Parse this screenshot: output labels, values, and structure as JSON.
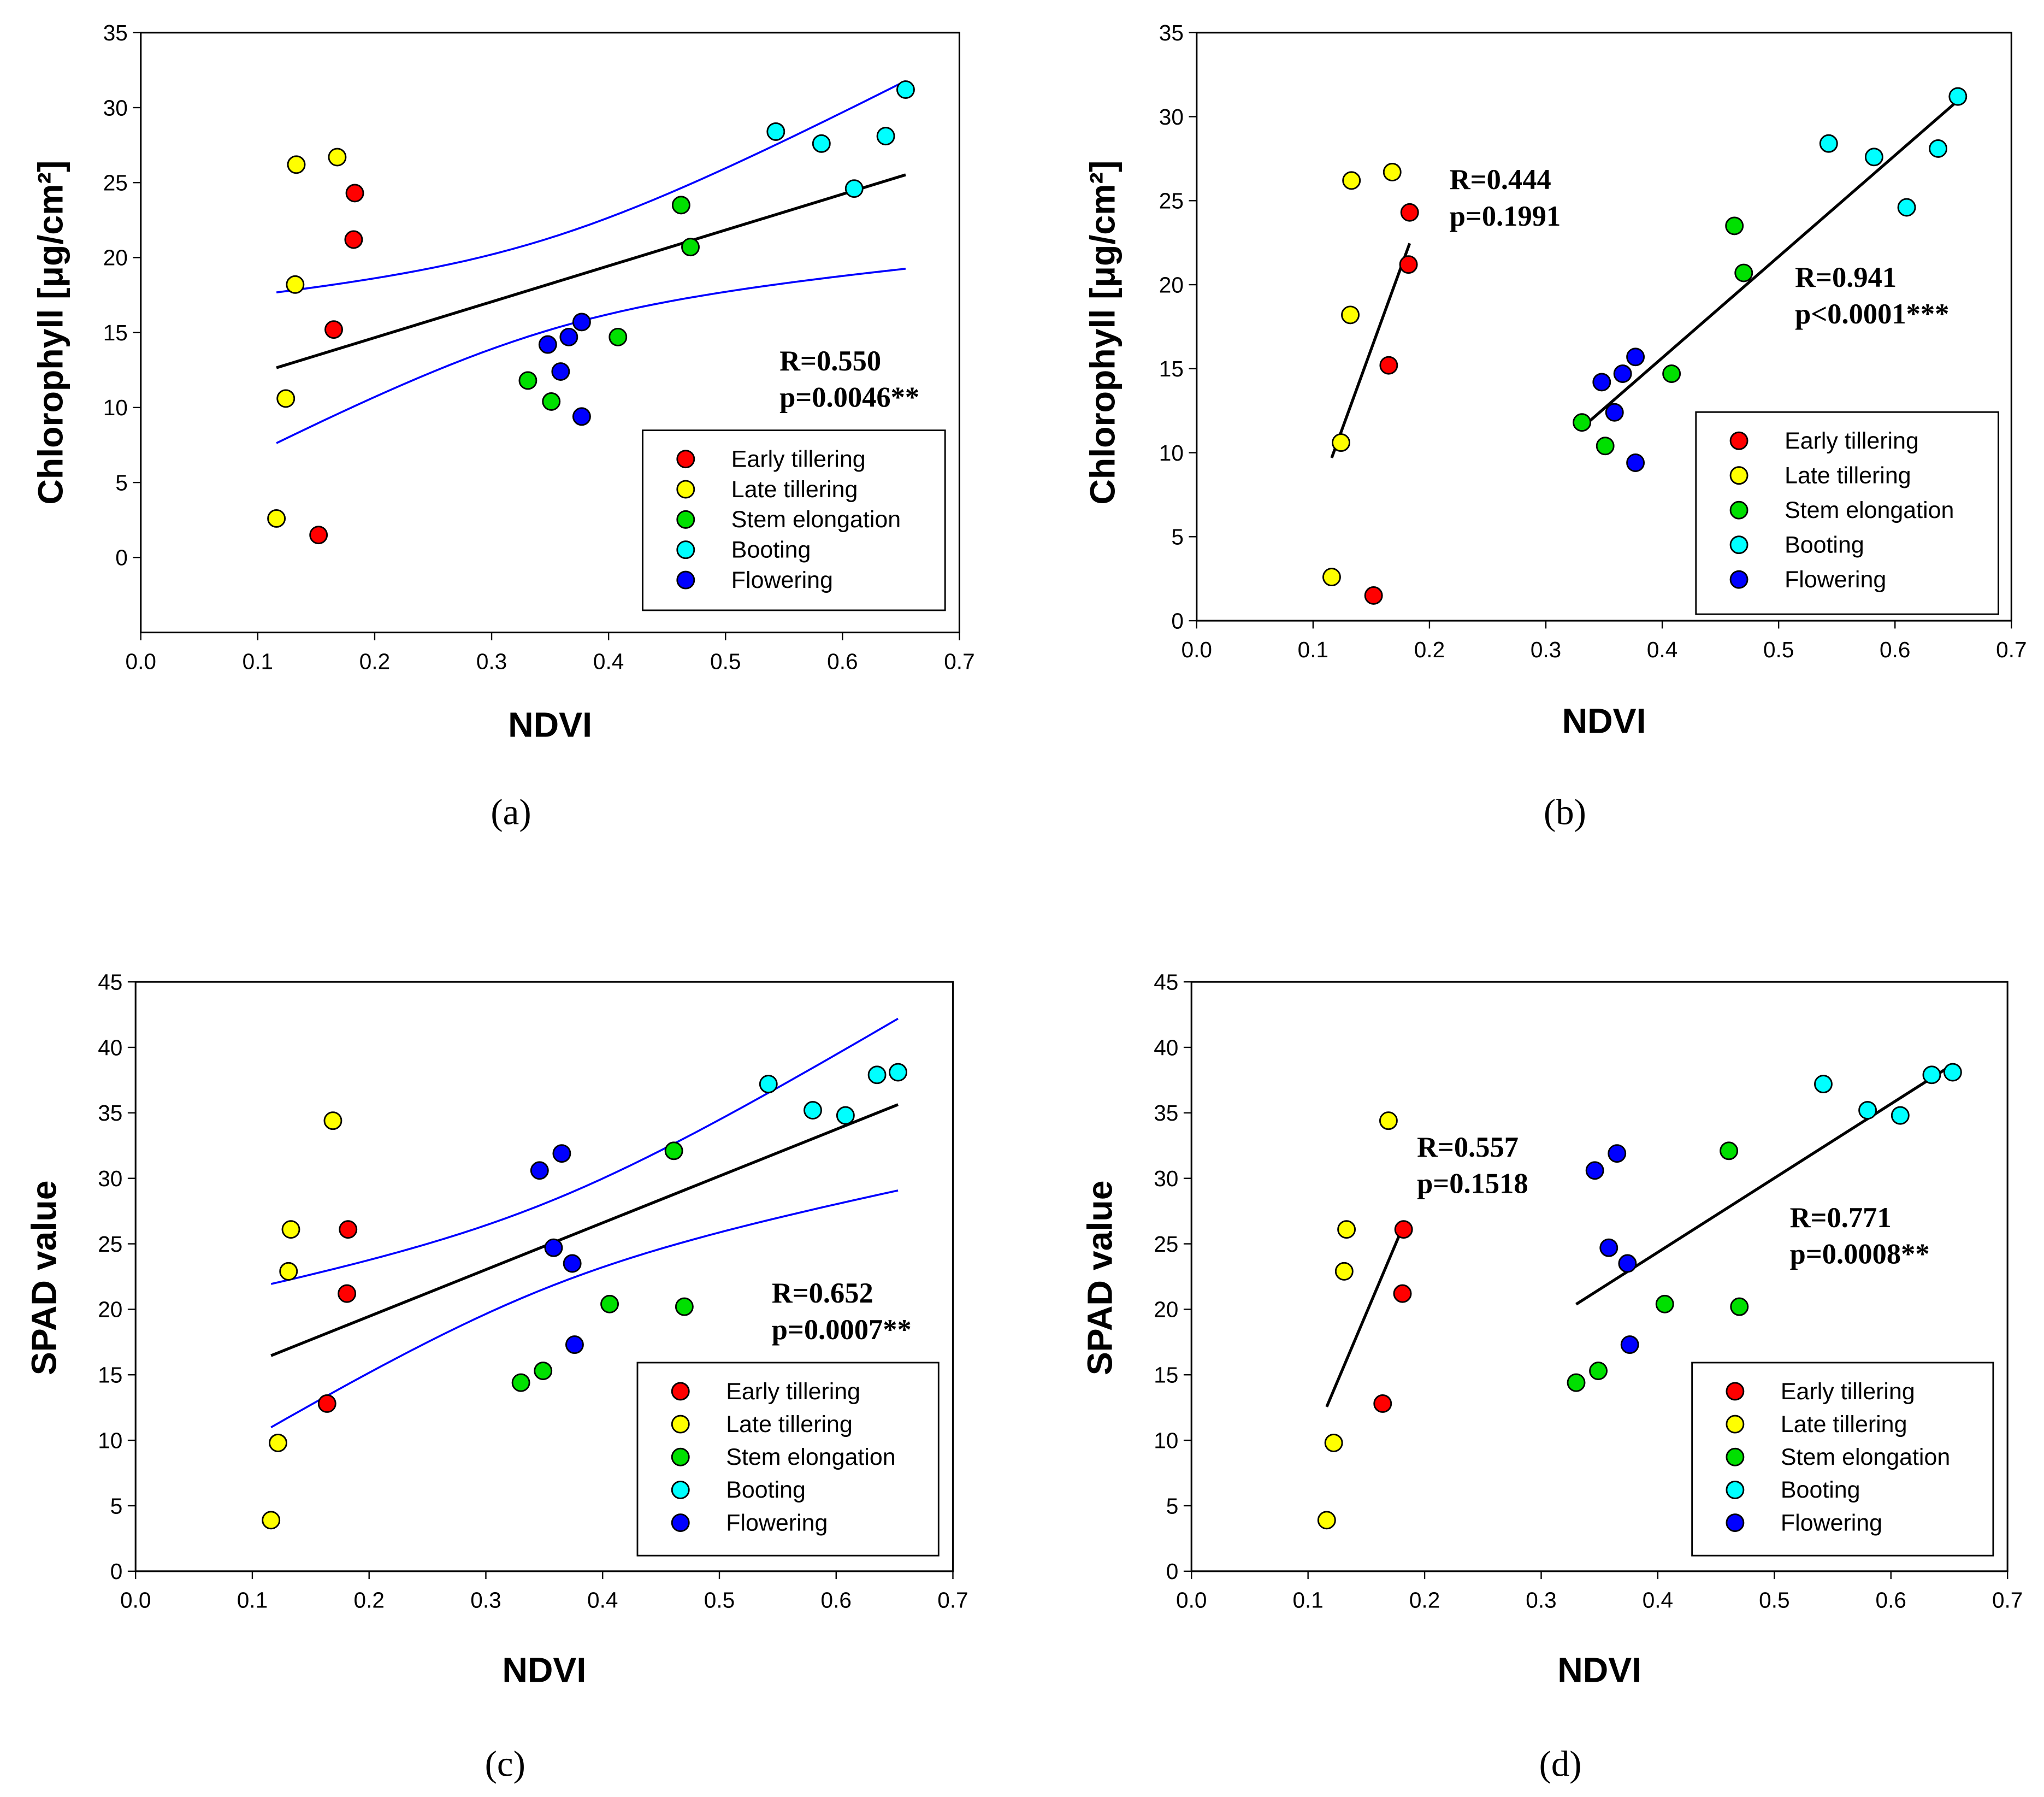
{
  "chart_data": [
    {
      "panel": "(a)",
      "type": "scatter",
      "xlabel": "NDVI",
      "ylabel": "Chlorophyll [μg/cm²]",
      "xlim": [
        0,
        0.7
      ],
      "ylim": [
        -5,
        35
      ],
      "xticks": [
        0,
        0.1,
        0.2,
        0.3,
        0.4,
        0.5,
        0.6,
        0.7
      ],
      "yticks": [
        0,
        5,
        10,
        15,
        20,
        25,
        30,
        35
      ],
      "fit": "single",
      "confidence_band": true,
      "annotations": [
        {
          "lines": [
            "R=0.550",
            "p=0.0046**"
          ]
        }
      ],
      "legend_position": "lower-right"
    },
    {
      "panel": "(b)",
      "type": "scatter",
      "xlabel": "NDVI",
      "ylabel": "Chlorophyll [μg/cm²]",
      "xlim": [
        0,
        0.7
      ],
      "ylim": [
        0,
        35
      ],
      "xticks": [
        0,
        0.1,
        0.2,
        0.3,
        0.4,
        0.5,
        0.6,
        0.7
      ],
      "yticks": [
        0,
        5,
        10,
        15,
        20,
        25,
        30,
        35
      ],
      "fit": "split",
      "confidence_band": false,
      "annotations": [
        {
          "lines": [
            "R=0.444",
            "p=0.1991"
          ]
        },
        {
          "lines": [
            "R=0.941",
            "p<0.0001***"
          ]
        }
      ],
      "legend_position": "lower-right"
    },
    {
      "panel": "(c)",
      "type": "scatter",
      "xlabel": "NDVI",
      "ylabel": "SPAD value",
      "xlim": [
        0,
        0.7
      ],
      "ylim": [
        0,
        45
      ],
      "xticks": [
        0,
        0.1,
        0.2,
        0.3,
        0.4,
        0.5,
        0.6,
        0.7
      ],
      "yticks": [
        0,
        5,
        10,
        15,
        20,
        25,
        30,
        35,
        40,
        45
      ],
      "fit": "single",
      "confidence_band": true,
      "annotations": [
        {
          "lines": [
            "R=0.652",
            "p=0.0007**"
          ]
        }
      ],
      "legend_position": "lower-right"
    },
    {
      "panel": "(d)",
      "type": "scatter",
      "xlabel": "NDVI",
      "ylabel": "SPAD value",
      "xlim": [
        0,
        0.7
      ],
      "ylim": [
        0,
        45
      ],
      "xticks": [
        0,
        0.1,
        0.2,
        0.3,
        0.4,
        0.5,
        0.6,
        0.7
      ],
      "yticks": [
        0,
        5,
        10,
        15,
        20,
        25,
        30,
        35,
        40,
        45
      ],
      "fit": "split",
      "confidence_band": false,
      "annotations": [
        {
          "lines": [
            "R=0.557",
            "p=0.1518"
          ]
        },
        {
          "lines": [
            "R=0.771",
            "p=0.0008**"
          ]
        }
      ],
      "legend_position": "lower-right"
    }
  ],
  "series": {
    "chlorophyll": [
      {
        "name": "Early tillering",
        "color": "#ff0000",
        "x": [
          0.183,
          0.182,
          0.165,
          0.152
        ],
        "y": [
          24.3,
          21.2,
          15.2,
          1.5
        ]
      },
      {
        "name": "Late tillering",
        "color": "#ffff00",
        "x": [
          0.168,
          0.133,
          0.132,
          0.124,
          0.116
        ],
        "y": [
          26.7,
          26.2,
          18.2,
          10.6,
          2.6
        ]
      },
      {
        "name": "Stem elongation",
        "color": "#00e000",
        "x": [
          0.462,
          0.47,
          0.408,
          0.331,
          0.351
        ],
        "y": [
          23.5,
          20.7,
          14.7,
          11.8,
          10.4
        ]
      },
      {
        "name": "Booting",
        "color": "#00ffff",
        "x": [
          0.654,
          0.543,
          0.582,
          0.637,
          0.61
        ],
        "y": [
          31.2,
          28.4,
          27.6,
          28.1,
          24.6
        ]
      },
      {
        "name": "Flowering",
        "color": "#0000ff",
        "x": [
          0.377,
          0.366,
          0.348,
          0.359,
          0.377
        ],
        "y": [
          15.7,
          14.7,
          14.2,
          12.4,
          9.4
        ]
      }
    ],
    "spad": [
      {
        "name": "Early tillering",
        "color": "#ff0000",
        "x": [
          0.182,
          0.181,
          0.164
        ],
        "y": [
          26.1,
          21.2,
          12.8
        ]
      },
      {
        "name": "Late tillering",
        "color": "#ffff00",
        "x": [
          0.169,
          0.133,
          0.131,
          0.122,
          0.116
        ],
        "y": [
          34.4,
          26.1,
          22.9,
          9.8,
          3.9
        ]
      },
      {
        "name": "Stem elongation",
        "color": "#00e000",
        "x": [
          0.461,
          0.406,
          0.47,
          0.349,
          0.33
        ],
        "y": [
          32.1,
          20.4,
          20.2,
          15.3,
          14.4
        ]
      },
      {
        "name": "Booting",
        "color": "#00ffff",
        "x": [
          0.542,
          0.653,
          0.635,
          0.58,
          0.608
        ],
        "y": [
          37.2,
          38.1,
          37.9,
          35.2,
          34.8
        ]
      },
      {
        "name": "Flowering",
        "color": "#0000ff",
        "x": [
          0.365,
          0.346,
          0.358,
          0.374,
          0.376
        ],
        "y": [
          31.9,
          30.6,
          24.7,
          23.5,
          17.3
        ]
      }
    ]
  },
  "colors": {
    "fit_line": "#000000",
    "confidence_band": "#0000ff"
  }
}
